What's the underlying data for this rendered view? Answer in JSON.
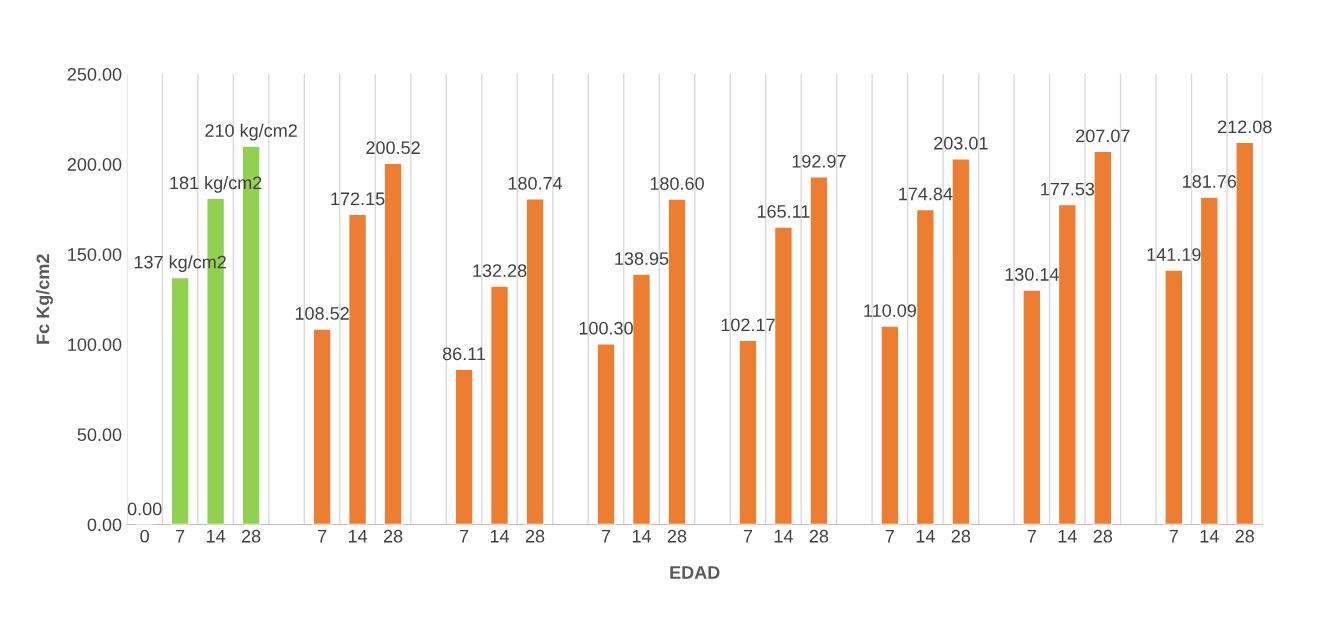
{
  "chart_data": {
    "type": "bar",
    "xlabel": "EDAD",
    "ylabel": "Fc Kg/cm2",
    "categories": [
      "0",
      "7",
      "14",
      "28",
      null,
      "7",
      "14",
      "28",
      null,
      "7",
      "14",
      "28",
      null,
      "7",
      "14",
      "28",
      null,
      "7",
      "14",
      "28",
      null,
      "7",
      "14",
      "28",
      null,
      "7",
      "14",
      "28",
      null,
      "7",
      "14",
      "28"
    ],
    "values": [
      0,
      137,
      181,
      210,
      null,
      108.52,
      172.15,
      200.52,
      null,
      86.11,
      132.28,
      180.74,
      null,
      100.3,
      138.95,
      180.6,
      null,
      102.17,
      165.11,
      192.97,
      null,
      110.09,
      174.84,
      203.01,
      null,
      130.14,
      177.53,
      207.07,
      null,
      141.19,
      181.76,
      212.08
    ],
    "value_labels": [
      "0.00",
      "137 kg/cm2",
      "181 kg/cm2",
      "210 kg/cm2",
      null,
      "108.52",
      "172.15",
      "200.52",
      null,
      "86.11",
      "132.28",
      "180.74",
      null,
      "100.30",
      "138.95",
      "180.60",
      null,
      "102.17",
      "165.11",
      "192.97",
      null,
      "110.09",
      "174.84",
      "203.01",
      null,
      "130.14",
      "177.53",
      "207.07",
      null,
      "141.19",
      "181.76",
      "212.08"
    ],
    "colors": [
      null,
      "#92d050",
      "#92d050",
      "#92d050",
      null,
      "#ed7d31",
      "#ed7d31",
      "#ed7d31",
      null,
      "#ed7d31",
      "#ed7d31",
      "#ed7d31",
      null,
      "#ed7d31",
      "#ed7d31",
      "#ed7d31",
      null,
      "#ed7d31",
      "#ed7d31",
      "#ed7d31",
      null,
      "#ed7d31",
      "#ed7d31",
      "#ed7d31",
      null,
      "#ed7d31",
      "#ed7d31",
      "#ed7d31",
      null,
      "#ed7d31",
      "#ed7d31",
      "#ed7d31"
    ],
    "ylim": [
      0,
      250
    ],
    "yticks": [
      {
        "value": 0,
        "label": "0.00"
      },
      {
        "value": 50,
        "label": "50.00"
      },
      {
        "value": 100,
        "label": "100.00"
      },
      {
        "value": 150,
        "label": "150.00"
      },
      {
        "value": 200,
        "label": "200.00"
      },
      {
        "value": 250,
        "label": "250.00"
      }
    ],
    "grid": "x"
  }
}
